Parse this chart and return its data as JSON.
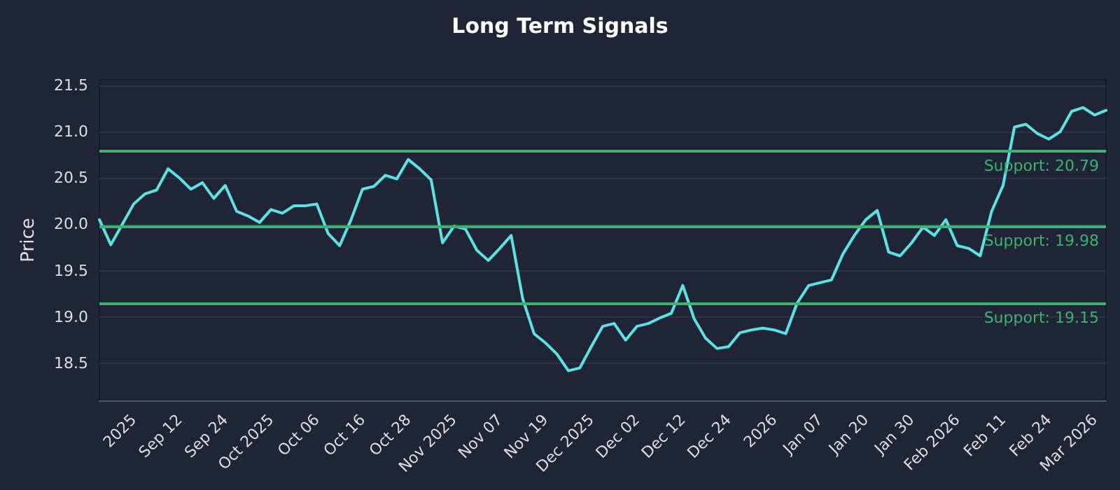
{
  "chart_data": {
    "type": "line",
    "title": "Long Term Signals",
    "ylabel": "Price",
    "categories": [
      null,
      null,
      null,
      "2025",
      null,
      null,
      null,
      "Sep 12",
      null,
      null,
      null,
      "Sep 24",
      null,
      null,
      null,
      "Oct 2025",
      null,
      null,
      null,
      "Oct 06",
      null,
      null,
      null,
      "Oct 16",
      null,
      null,
      null,
      "Oct 28",
      null,
      null,
      null,
      "Nov 2025",
      null,
      null,
      null,
      "Nov 07",
      null,
      null,
      null,
      "Nov 19",
      null,
      null,
      null,
      "Dec 2025",
      null,
      null,
      null,
      "Dec 02",
      null,
      null,
      null,
      "Dec 12",
      null,
      null,
      null,
      "Dec 24",
      null,
      null,
      null,
      "2026",
      null,
      null,
      null,
      "Jan 07",
      null,
      null,
      null,
      "Jan 20",
      null,
      null,
      null,
      "Jan 30",
      null,
      null,
      null,
      "Feb 2026",
      null,
      null,
      null,
      "Feb 11",
      null,
      null,
      null,
      "Feb 24",
      null,
      null,
      null,
      "Mar 2026",
      null
    ],
    "series": [
      {
        "color": "#5ce1e6",
        "values": [
          20.05,
          19.78,
          20.0,
          20.22,
          20.33,
          20.37,
          20.6,
          20.5,
          20.38,
          20.45,
          20.28,
          20.42,
          20.14,
          20.09,
          20.02,
          20.16,
          20.12,
          20.2,
          20.2,
          20.22,
          19.9,
          19.77,
          20.05,
          20.38,
          20.41,
          20.53,
          20.49,
          20.7,
          20.6,
          20.48,
          19.8,
          19.98,
          19.95,
          19.72,
          19.61,
          19.74,
          19.88,
          19.2,
          18.82,
          18.72,
          18.6,
          18.42,
          18.45,
          18.68,
          18.9,
          18.93,
          18.75,
          18.9,
          18.93,
          18.99,
          19.04,
          19.34,
          18.98,
          18.77,
          18.66,
          18.68,
          18.83,
          18.86,
          18.88,
          18.86,
          18.82,
          19.15,
          19.34,
          19.37,
          19.4,
          19.68,
          19.88,
          20.05,
          20.15,
          19.7,
          19.66,
          19.8,
          19.97,
          19.88,
          20.05,
          19.77,
          19.74,
          19.66,
          20.14,
          20.42,
          21.05,
          21.08,
          20.98,
          20.92,
          21.0,
          21.22,
          21.26,
          21.18,
          21.23
        ]
      }
    ],
    "ylim": [
      18.1,
      21.56
    ],
    "yticks": [
      18.5,
      {
        "value": 19,
        "label": "19.0"
      },
      19.5,
      {
        "value": 20,
        "label": "20.0"
      },
      20.5,
      {
        "value": 21,
        "label": "21.0"
      },
      21.5
    ],
    "ref_lines": [
      {
        "axis": "y",
        "value": 20.79,
        "label": "Support: 20.79",
        "color": "#3cb371"
      },
      {
        "axis": "y",
        "value": 19.98,
        "label": "Support: 19.98",
        "color": "#3cb371"
      },
      {
        "axis": "y",
        "value": 19.15,
        "label": "Support: 19.15",
        "color": "#3cb371"
      }
    ],
    "grid": "y",
    "marker": "none",
    "line_style": "solid"
  }
}
